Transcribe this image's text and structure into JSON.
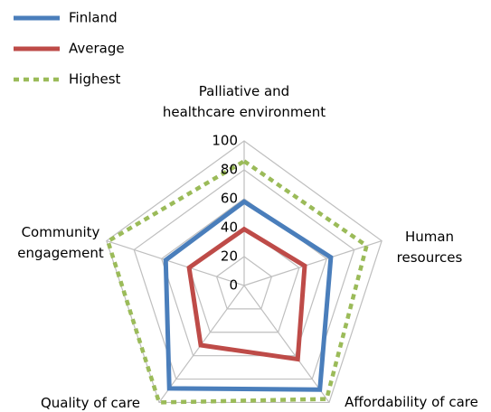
{
  "chart_data": {
    "type": "radar",
    "categories": [
      "Palliative and\nhealthcare environment",
      "Human\nresources",
      "Affordability of care",
      "Quality of care",
      "Community\nengagement"
    ],
    "series": [
      {
        "name": "Finland",
        "color": "#4a7ebb",
        "style": "solid",
        "values": [
          58,
          63,
          89,
          88,
          57
        ]
      },
      {
        "name": "Average",
        "color": "#be4b48",
        "style": "solid",
        "values": [
          39,
          44,
          63,
          51,
          40
        ]
      },
      {
        "name": "Highest",
        "color": "#9bbb59",
        "style": "dashed",
        "values": [
          86,
          89,
          97,
          100,
          99
        ]
      }
    ],
    "ylim": [
      0,
      100
    ],
    "yticks": [
      0,
      20,
      40,
      60,
      80,
      100
    ],
    "grid": true,
    "legend": "top-left"
  }
}
